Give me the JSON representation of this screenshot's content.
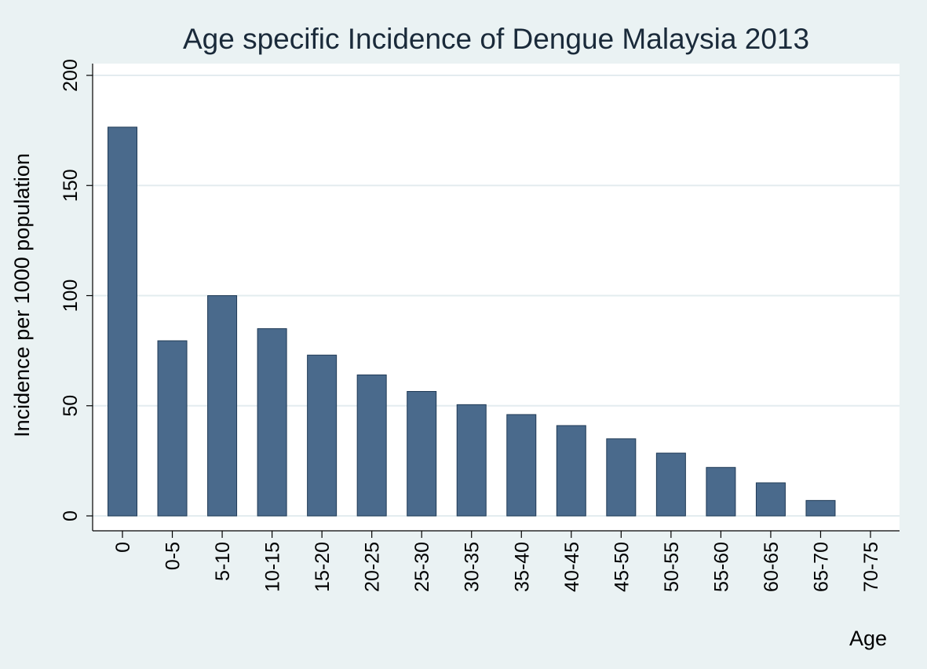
{
  "colors": {
    "background": "#eaf2f3",
    "plot_background": "#ffffff",
    "bar_fill": "#4a6a8c",
    "bar_stroke": "#1f3a56",
    "gridline": "#e3ecef",
    "axis": "#000000"
  },
  "chart_data": {
    "type": "bar",
    "title": "Age specific Incidence of Dengue Malaysia 2013",
    "xlabel": "Age",
    "ylabel": "Incidence per 1000 population",
    "categories": [
      "0",
      "0-5",
      "5-10",
      "10-15",
      "15-20",
      "20-25",
      "25-30",
      "30-35",
      "35-40",
      "40-45",
      "45-50",
      "50-55",
      "55-60",
      "60-65",
      "65-70",
      "70-75"
    ],
    "values": [
      176.5,
      79.5,
      100,
      85,
      73,
      64,
      56.5,
      50.5,
      46,
      41,
      35,
      28.5,
      22,
      15,
      7,
      0
    ],
    "ylim": [
      0,
      200
    ],
    "yticks": [
      0,
      50,
      100,
      150,
      200
    ],
    "grid": true,
    "legend": "none"
  }
}
